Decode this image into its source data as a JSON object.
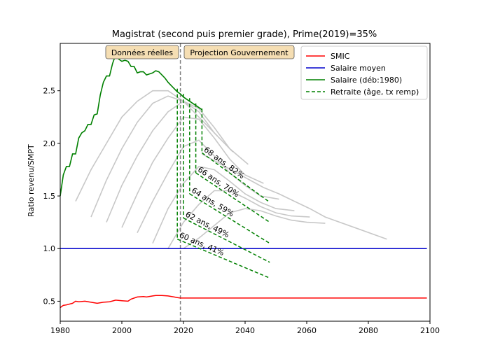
{
  "chart_data": {
    "type": "line",
    "title": "Magistrat (second puis premier grade), Prime(2019)=35%",
    "xlabel": "",
    "ylabel": "Ratio revenu/SMPT",
    "xlim": [
      1980,
      2100
    ],
    "ylim": [
      0.31,
      2.95
    ],
    "xticks": [
      1980,
      2000,
      2020,
      2040,
      2060,
      2080,
      2100
    ],
    "xtick_labels": [
      "1980",
      "2000",
      "2020",
      "2040",
      "2060",
      "2080",
      "2100"
    ],
    "yticks": [
      0.5,
      1.0,
      1.5,
      2.0,
      2.5
    ],
    "ytick_labels": [
      "0.5",
      "1.0",
      "1.5",
      "2.0",
      "2.5"
    ],
    "grid": false,
    "legend_position": "top-right",
    "vline": {
      "x": 2019,
      "color": "#808080",
      "style": "dashed"
    },
    "phase_labels": [
      "Données réelles",
      "Projection Gouvernement"
    ],
    "colors": {
      "smic": "#ff0000",
      "mean": "#0000cc",
      "salary": "#008000",
      "retire": "#008000",
      "ghost": "#c8c8c8",
      "label_bg": "#f5deb3"
    },
    "series": [
      {
        "name": "SMIC",
        "x": [
          1980,
          1981,
          1982,
          1984,
          1985,
          1986,
          1988,
          1990,
          1992,
          1994,
          1996,
          1998,
          2000,
          2002,
          2003,
          2005,
          2007,
          2008,
          2010,
          2011,
          2013,
          2015,
          2017,
          2018,
          2019,
          2020,
          2030,
          2050,
          2099
        ],
        "y": [
          0.44,
          0.46,
          0.465,
          0.48,
          0.5,
          0.495,
          0.5,
          0.49,
          0.48,
          0.49,
          0.495,
          0.51,
          0.505,
          0.5,
          0.52,
          0.54,
          0.545,
          0.54,
          0.55,
          0.555,
          0.555,
          0.55,
          0.54,
          0.535,
          0.53,
          0.53,
          0.53,
          0.53,
          0.53
        ]
      },
      {
        "name": "Salaire moyen",
        "x": [
          1980,
          2099
        ],
        "y": [
          1.0,
          1.0
        ]
      },
      {
        "name": "Salaire (déb:1980)",
        "x": [
          1980,
          1981,
          1982,
          1983,
          1984,
          1985,
          1986,
          1987,
          1988,
          1989,
          1990,
          1991,
          1992,
          1993,
          1994,
          1995,
          1996,
          1997,
          1998,
          1999,
          2000,
          2001,
          2002,
          2003,
          2004,
          2005,
          2006,
          2007,
          2008,
          2009,
          2010,
          2011,
          2012,
          2013,
          2014,
          2015,
          2016,
          2017,
          2018,
          2019,
          2020,
          2021,
          2022,
          2023,
          2024,
          2025,
          2026
        ],
        "y": [
          1.5,
          1.7,
          1.78,
          1.78,
          1.9,
          1.9,
          2.05,
          2.1,
          2.12,
          2.18,
          2.18,
          2.27,
          2.28,
          2.46,
          2.58,
          2.64,
          2.64,
          2.76,
          2.84,
          2.8,
          2.78,
          2.79,
          2.78,
          2.73,
          2.73,
          2.67,
          2.68,
          2.68,
          2.65,
          2.66,
          2.67,
          2.69,
          2.68,
          2.65,
          2.62,
          2.58,
          2.55,
          2.52,
          2.49,
          2.47,
          2.44,
          2.42,
          2.4,
          2.38,
          2.36,
          2.34,
          2.32
        ]
      },
      {
        "name": "Retraite (âge, tx remp)",
        "style": "dashed"
      }
    ],
    "retirement_scenarios": [
      {
        "label": "60 ans, 41%",
        "start_x": 2018,
        "start_top": 2.52,
        "start_y": 1.09,
        "end_x": 2048,
        "end_y": 0.72
      },
      {
        "label": "62 ans, 49%",
        "start_x": 2020,
        "start_top": 2.47,
        "start_y": 1.29,
        "end_x": 2048,
        "end_y": 0.87
      },
      {
        "label": "64 ans, 59%",
        "start_x": 2022,
        "start_top": 2.43,
        "start_y": 1.52,
        "end_x": 2048,
        "end_y": 1.05
      },
      {
        "label": "66 ans, 70%",
        "start_x": 2024,
        "start_top": 2.38,
        "start_y": 1.72,
        "end_x": 2048,
        "end_y": 1.25
      },
      {
        "label": "68 ans, 82%",
        "start_x": 2026,
        "start_top": 2.33,
        "start_y": 1.91,
        "end_x": 2048,
        "end_y": 1.44
      }
    ],
    "ghost_curves_note": "grey career curves for later entry cohorts",
    "ghost_curves": [
      {
        "x": [
          1985,
          1990,
          1995,
          2000,
          2005,
          2010,
          2015,
          2020,
          2025,
          2031
        ],
        "y": [
          1.45,
          1.75,
          2.0,
          2.25,
          2.4,
          2.5,
          2.5,
          2.4,
          2.25,
          2.07
        ]
      },
      {
        "x": [
          1990,
          1995,
          2000,
          2005,
          2010,
          2015,
          2020,
          2025,
          2030,
          2036
        ],
        "y": [
          1.3,
          1.65,
          1.95,
          2.2,
          2.38,
          2.45,
          2.4,
          2.3,
          2.1,
          1.92
        ]
      },
      {
        "x": [
          1995,
          2000,
          2005,
          2010,
          2015,
          2020,
          2025,
          2030,
          2035,
          2041
        ],
        "y": [
          1.25,
          1.6,
          1.88,
          2.12,
          2.3,
          2.4,
          2.33,
          2.15,
          1.95,
          1.8
        ]
      },
      {
        "x": [
          2000,
          2005,
          2010,
          2015,
          2020,
          2025,
          2030,
          2035,
          2040,
          2046
        ],
        "y": [
          1.2,
          1.52,
          1.82,
          2.05,
          2.25,
          2.23,
          2.05,
          1.85,
          1.7,
          1.62
        ]
      },
      {
        "x": [
          2005,
          2010,
          2015,
          2020,
          2025,
          2030,
          2035,
          2040,
          2045,
          2051
        ],
        "y": [
          1.15,
          1.45,
          1.72,
          1.97,
          2.03,
          1.88,
          1.72,
          1.6,
          1.5,
          1.47
        ]
      },
      {
        "x": [
          2010,
          2015,
          2020,
          2025,
          2030,
          2035,
          2040,
          2045,
          2050,
          2056
        ],
        "y": [
          1.05,
          1.38,
          1.62,
          1.78,
          1.75,
          1.64,
          1.52,
          1.44,
          1.38,
          1.36
        ]
      },
      {
        "x": [
          2015,
          2020,
          2025,
          2030,
          2035,
          2040,
          2045,
          2050,
          2055,
          2061
        ],
        "y": [
          1.0,
          1.25,
          1.42,
          1.55,
          1.55,
          1.48,
          1.4,
          1.34,
          1.31,
          1.3
        ]
      },
      {
        "x": [
          2020,
          2025,
          2030,
          2035,
          2040,
          2045,
          2050,
          2055,
          2060,
          2066
        ],
        "y": [
          1.0,
          1.1,
          1.22,
          1.34,
          1.38,
          1.36,
          1.31,
          1.27,
          1.25,
          1.24
        ]
      },
      {
        "x": [
          2026,
          2031,
          2036,
          2041,
          2046,
          2051,
          2056,
          2061,
          2066,
          2086
        ],
        "y": [
          1.9,
          1.82,
          1.74,
          1.66,
          1.58,
          1.52,
          1.45,
          1.38,
          1.3,
          1.09
        ]
      }
    ]
  }
}
